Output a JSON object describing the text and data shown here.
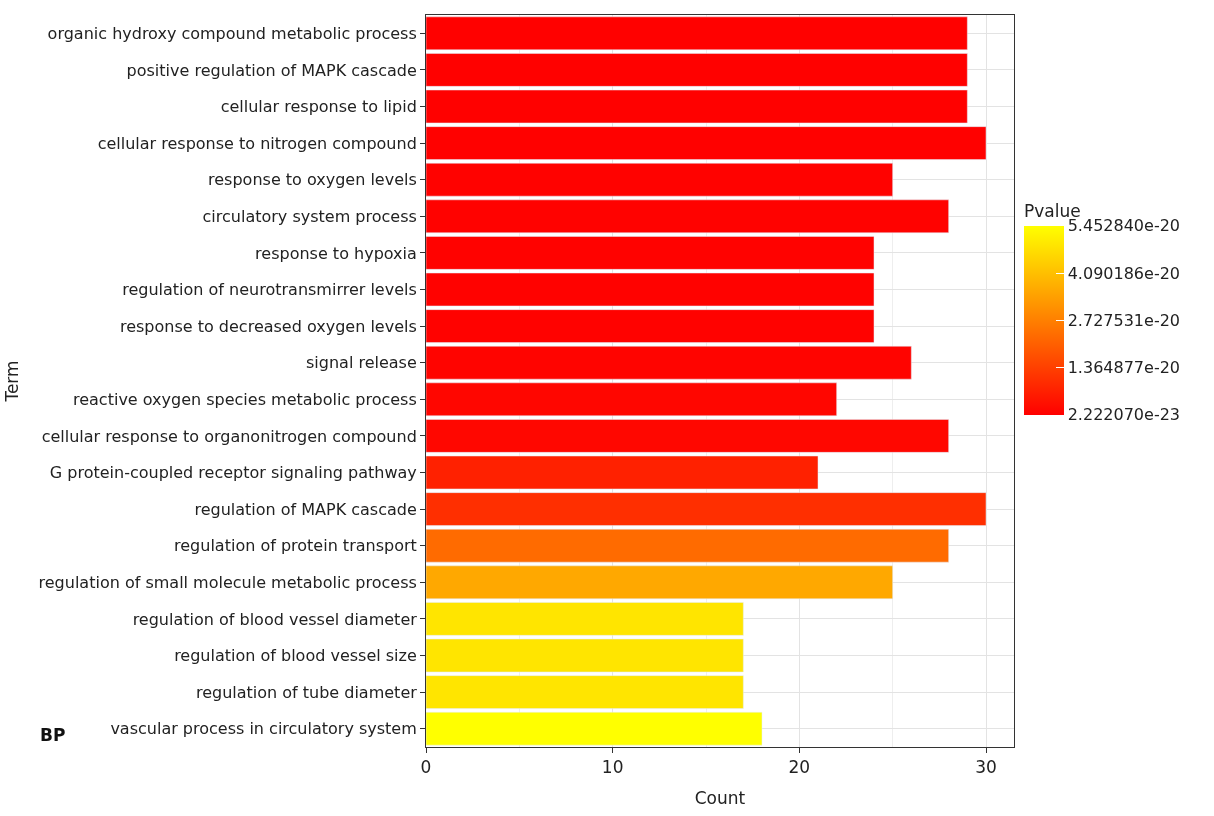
{
  "chart_data": {
    "type": "bar",
    "orientation": "horizontal",
    "xlabel": "Count",
    "ylabel": "Term",
    "clabel": "Pvalue",
    "categories": [
      "organic hydroxy compound metabolic process",
      "positive regulation of MAPK cascade",
      "cellular response to lipid",
      "cellular response to nitrogen compound",
      "response to oxygen levels",
      "circulatory system process",
      "response to hypoxia",
      "regulation of neurotransmirrer levels",
      "response to decreased oxygen levels",
      "signal release",
      "reactive oxygen species metabolic process",
      "cellular response to organonitrogen compound",
      "G protein-coupled receptor signaling pathway",
      "regulation of MAPK cascade",
      "regulation of protein transport",
      "regulation of small molecule metabolic process",
      "regulation of blood vessel diameter",
      "regulation of blood vessel size",
      "regulation of tube diameter",
      "vascular process in circulatory system"
    ],
    "values": [
      29,
      29,
      29,
      30,
      25,
      28,
      24,
      24,
      24,
      26,
      22,
      28,
      21,
      30,
      28,
      25,
      17,
      17,
      17,
      18
    ],
    "cvalues": [
      2.5e-22,
      2.5e-22,
      2.5e-22,
      2.5e-22,
      4e-22,
      4e-22,
      5e-22,
      5e-22,
      5e-22,
      8e-22,
      1.2e-21,
      1.5e-21,
      7e-21,
      1e-20,
      2.3e-20,
      3.6e-20,
      4.9e-20,
      4.9e-20,
      4.9e-20,
      5.45284e-20
    ],
    "clim": [
      2.22207e-23,
      5.45284e-20
    ],
    "cticks": [
      {
        "value": 2.22207e-23,
        "label": "2.222070e-23"
      },
      {
        "value": 1.364877e-20,
        "label": "1.364877e-20"
      },
      {
        "value": 2.727531e-20,
        "label": "2.727531e-20"
      },
      {
        "value": 4.090186e-20,
        "label": "4.090186e-20"
      },
      {
        "value": 5.45284e-20,
        "label": "5.452840e-20"
      }
    ],
    "xlim": [
      0,
      31.5
    ],
    "xticks": [
      0,
      10,
      20,
      30
    ],
    "grid": true,
    "annotations": [
      "BP"
    ]
  }
}
